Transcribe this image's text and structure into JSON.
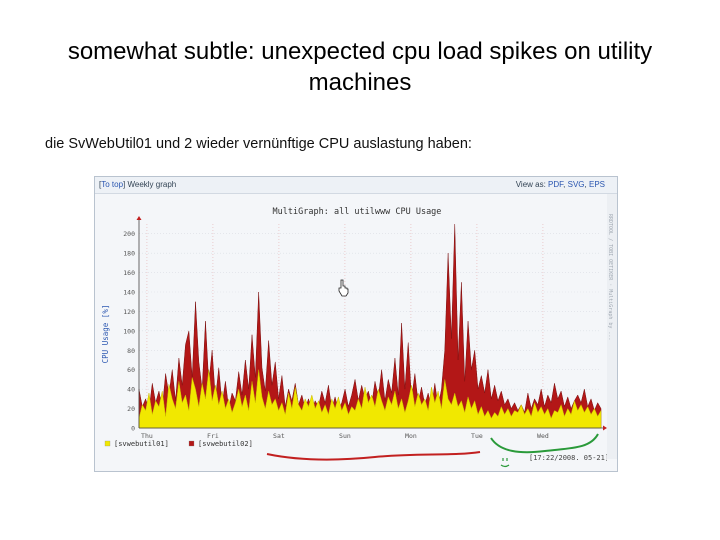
{
  "slide": {
    "title": "somewhat subtle: unexpected cpu load spikes on utility machines",
    "caption": "die SvWebUtil01 und 2 wieder vernünftige CPU auslastung haben:"
  },
  "panel": {
    "nav_prefix": "[",
    "nav_link": "To top",
    "nav_suffix": "] Weekly graph",
    "view_label": "View as: ",
    "view_pdf": "PDF",
    "view_svg": "SVG",
    "view_eps": "EPS",
    "timestamp": "[17:22/2008. 05-21]",
    "side_text": "RRDTOOL / TOBI OETIKER · MultiGraph by ..."
  },
  "colors": {
    "util01": "#f1e800",
    "util02": "#b31717",
    "annotation_red": "#c22020",
    "annotation_green": "#2a9a3a",
    "grid": "#d9dde3",
    "background": "#f4f6f9"
  },
  "chart_data": {
    "type": "area",
    "title": "MultiGraph: all utilwww CPU Usage",
    "ylabel": "CPU Usage [%]",
    "xlabel": "",
    "ylim": [
      0,
      210
    ],
    "yticks": [
      0,
      20,
      40,
      60,
      80,
      100,
      120,
      140,
      160,
      180,
      200
    ],
    "x_tick_labels": [
      "Thu",
      "Fri",
      "Sat",
      "Sun",
      "Mon",
      "Tue",
      "Wed"
    ],
    "grid": true,
    "legend_placement": "bottom-left",
    "series": [
      {
        "name": "[svwebutil01]",
        "color": "#f1e800",
        "values": [
          10,
          24,
          18,
          36,
          14,
          28,
          22,
          38,
          12,
          45,
          30,
          20,
          48,
          26,
          34,
          18,
          52,
          40,
          22,
          46,
          30,
          60,
          28,
          44,
          24,
          38,
          20,
          30,
          16,
          26,
          40,
          22,
          34,
          18,
          48,
          26,
          60,
          32,
          20,
          38,
          24,
          30,
          18,
          26,
          14,
          36,
          20,
          42,
          24,
          18,
          30,
          22,
          34,
          20,
          28,
          16,
          24,
          14,
          30,
          20,
          32,
          18,
          26,
          14,
          22,
          18,
          30,
          20,
          42,
          26,
          34,
          22,
          40,
          28,
          18,
          32,
          24,
          38,
          20,
          30,
          16,
          28,
          44,
          22,
          36,
          24,
          30,
          18,
          42,
          26,
          38,
          20,
          50,
          30,
          24,
          36,
          22,
          28,
          16,
          32,
          20,
          28,
          14,
          22,
          12,
          18,
          10,
          16,
          12,
          22,
          14,
          20,
          12,
          18,
          16,
          24,
          14,
          20,
          12,
          26,
          16,
          22,
          14,
          20,
          10,
          18,
          16,
          24,
          12,
          20,
          14,
          28,
          18,
          24,
          16,
          22,
          14,
          20,
          12,
          18
        ]
      },
      {
        "name": "[svwebutil02]",
        "color": "#b31717",
        "values": [
          40,
          22,
          30,
          18,
          46,
          26,
          38,
          20,
          56,
          34,
          60,
          28,
          72,
          44,
          86,
          100,
          52,
          130,
          68,
          40,
          110,
          46,
          80,
          30,
          62,
          24,
          48,
          20,
          36,
          28,
          58,
          34,
          70,
          40,
          96,
          52,
          140,
          62,
          38,
          90,
          44,
          68,
          30,
          54,
          22,
          40,
          28,
          46,
          24,
          34,
          20,
          30,
          18,
          28,
          22,
          38,
          26,
          44,
          20,
          32,
          18,
          26,
          40,
          22,
          34,
          50,
          28,
          44,
          30,
          38,
          24,
          48,
          32,
          60,
          28,
          50,
          36,
          72,
          34,
          108,
          40,
          88,
          30,
          56,
          26,
          42,
          24,
          36,
          20,
          46,
          22,
          40,
          80,
          180,
          92,
          210,
          70,
          150,
          48,
          110,
          60,
          80,
          40,
          54,
          36,
          60,
          30,
          44,
          28,
          38,
          24,
          30,
          20,
          26,
          18,
          24,
          16,
          36,
          20,
          30,
          24,
          40,
          22,
          34,
          26,
          46,
          30,
          38,
          22,
          32,
          20,
          28,
          34,
          26,
          40,
          22,
          30,
          18,
          26,
          20
        ]
      }
    ]
  }
}
